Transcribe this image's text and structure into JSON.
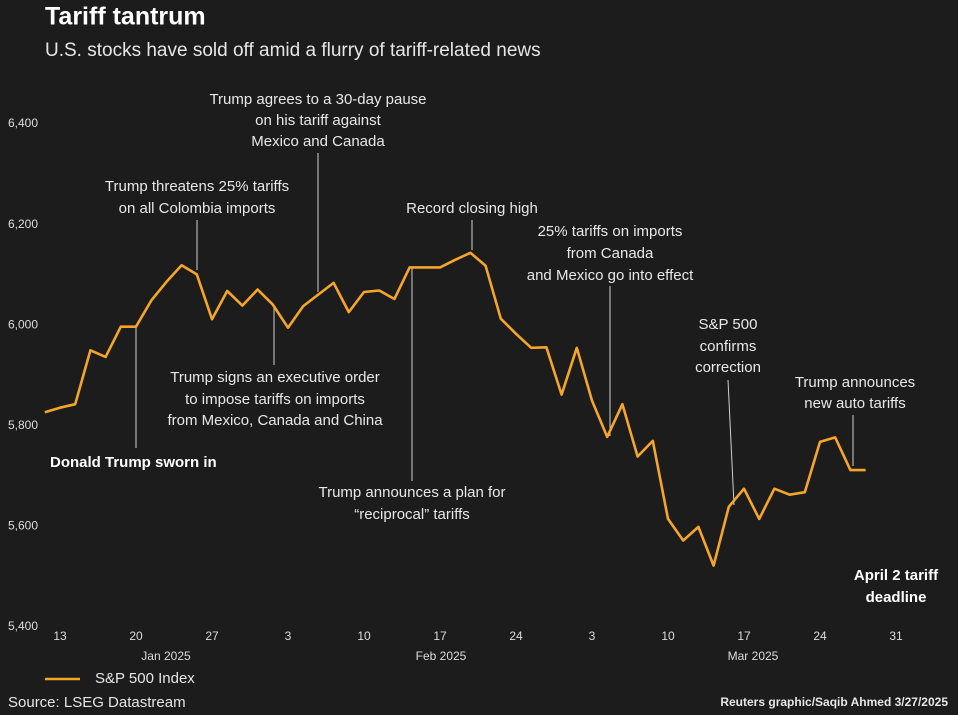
{
  "chart_data": {
    "type": "line",
    "title": "Tariff tantrum",
    "subtitle": "U.S. stocks have sold off amid a flurry of tariff-related news",
    "x": [
      "2025-01-10",
      "2025-01-13",
      "2025-01-14",
      "2025-01-15",
      "2025-01-16",
      "2025-01-17",
      "2025-01-20",
      "2025-01-21",
      "2025-01-22",
      "2025-01-23",
      "2025-01-24",
      "2025-01-27",
      "2025-01-28",
      "2025-01-29",
      "2025-01-30",
      "2025-01-31",
      "2025-02-03",
      "2025-02-04",
      "2025-02-05",
      "2025-02-06",
      "2025-02-07",
      "2025-02-10",
      "2025-02-11",
      "2025-02-12",
      "2025-02-13",
      "2025-02-14",
      "2025-02-17",
      "2025-02-18",
      "2025-02-19",
      "2025-02-20",
      "2025-02-21",
      "2025-02-24",
      "2025-02-25",
      "2025-02-26",
      "2025-02-27",
      "2025-02-28",
      "2025-03-03",
      "2025-03-04",
      "2025-03-05",
      "2025-03-06",
      "2025-03-07",
      "2025-03-10",
      "2025-03-11",
      "2025-03-12",
      "2025-03-13",
      "2025-03-14",
      "2025-03-17",
      "2025-03-18",
      "2025-03-19",
      "2025-03-20",
      "2025-03-21",
      "2025-03-24",
      "2025-03-25",
      "2025-03-26",
      "2025-03-27"
    ],
    "series": [
      {
        "name": "S&P 500 Index",
        "color": "#f5a52a",
        "values": [
          5827,
          5836,
          5843,
          5950,
          5937,
          5997,
          5997,
          6049,
          6086,
          6119,
          6101,
          6012,
          6068,
          6039,
          6071,
          6041,
          5995,
          6038,
          6061,
          6084,
          6026,
          6066,
          6069,
          6052,
          6115,
          6115,
          6115,
          6130,
          6144,
          6118,
          6013,
          5983,
          5955,
          5956,
          5862,
          5955,
          5850,
          5778,
          5843,
          5739,
          5770,
          5615,
          5572,
          5599,
          5522,
          5639,
          5675,
          5615,
          5675,
          5663,
          5668,
          5768,
          5777,
          5712,
          5712
        ]
      }
    ],
    "ylim": [
      5400,
      6400
    ],
    "yticks": [
      {
        "value": 5400,
        "label": "5,400"
      },
      {
        "value": 5600,
        "label": "5,600"
      },
      {
        "value": 5800,
        "label": "5,800"
      },
      {
        "value": 6000,
        "label": "6,000"
      },
      {
        "value": 6200,
        "label": "6,200"
      },
      {
        "value": 6400,
        "label": "6,400"
      }
    ],
    "xticks": [
      {
        "value": "2025-01-13",
        "label": "13"
      },
      {
        "value": "2025-01-20",
        "label": "20"
      },
      {
        "value": "2025-01-27",
        "label": "27"
      },
      {
        "value": "2025-02-03",
        "label": "3"
      },
      {
        "value": "2025-02-10",
        "label": "10"
      },
      {
        "value": "2025-02-17",
        "label": "17"
      },
      {
        "value": "2025-02-24",
        "label": "24"
      },
      {
        "value": "2025-03-03",
        "label": "3"
      },
      {
        "value": "2025-03-10",
        "label": "10"
      },
      {
        "value": "2025-03-17",
        "label": "17"
      },
      {
        "value": "2025-03-24",
        "label": "24"
      },
      {
        "value": "2025-03-31",
        "label": "31"
      }
    ],
    "x_group_labels": [
      "Jan 2025",
      "Feb 2025",
      "Mar 2025"
    ],
    "grid": false,
    "annotations": [
      [
        "Donald Trump sworn in"
      ],
      [
        "Trump threatens 25% tariffs",
        "on all Colombia imports"
      ],
      [
        "Trump agrees to a 30-day pause",
        "on his tariff against",
        "Mexico and Canada"
      ],
      [
        "Record closing high"
      ],
      [
        "25% tariffs on imports",
        "from Canada",
        "and Mexico go into effect"
      ],
      [
        "S&P 500",
        "confirms",
        "correction"
      ],
      [
        "Trump announces",
        "new auto tariffs"
      ],
      [
        "Trump signs an executive order",
        "to impose tariffs on imports",
        "from Mexico, Canada and China"
      ],
      [
        "Trump announces a plan for",
        "“reciprocal” tariffs"
      ],
      [
        "April 2 tariff",
        "deadline"
      ]
    ],
    "source": "Source: LSEG Datastream",
    "credit": "Reuters graphic/Saqib Ahmed 3/27/2025"
  }
}
